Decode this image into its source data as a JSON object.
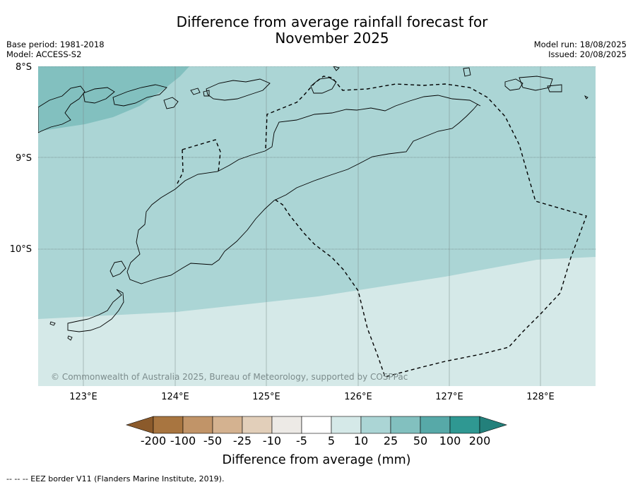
{
  "title_line1": "Difference from average rainfall forecast for",
  "title_line2": "November 2025",
  "meta_left": {
    "base_period": "Base period: 1981-2018",
    "model": "Model: ACCESS-S2"
  },
  "meta_right": {
    "model_run": "Model run: 18/08/2025",
    "issued": "Issued: 20/08/2025"
  },
  "lat_labels": [
    "8°S",
    "9°S",
    "10°S"
  ],
  "lon_labels": [
    "123°E",
    "124°E",
    "125°E",
    "126°E",
    "127°E",
    "128°E"
  ],
  "copyright": "© Commonwealth of Australia 2025, Bureau of Meteorology, supported by COSPPac",
  "colorbar": {
    "ticks": [
      "-200",
      "-100",
      "-50",
      "-25",
      "-10",
      "-5",
      "5",
      "10",
      "25",
      "50",
      "100",
      "200"
    ],
    "colors": [
      "#8b5a2b",
      "#a87540",
      "#c19468",
      "#d4b290",
      "#e2cfba",
      "#edeae6",
      "#ffffff",
      "#d5e9e8",
      "#abd5d5",
      "#82c0bf",
      "#57a9a8",
      "#2f9892",
      "#23807b"
    ],
    "label": "Difference from average (mm)"
  },
  "legend_line": "--  --  -- EEZ border V11 (Flanders Marine Institute, 2019).",
  "map_colors": {
    "band_10_25": "#abd5d5",
    "band_5_10": "#d5e9e8",
    "band_25_50": "#82c0bf"
  }
}
